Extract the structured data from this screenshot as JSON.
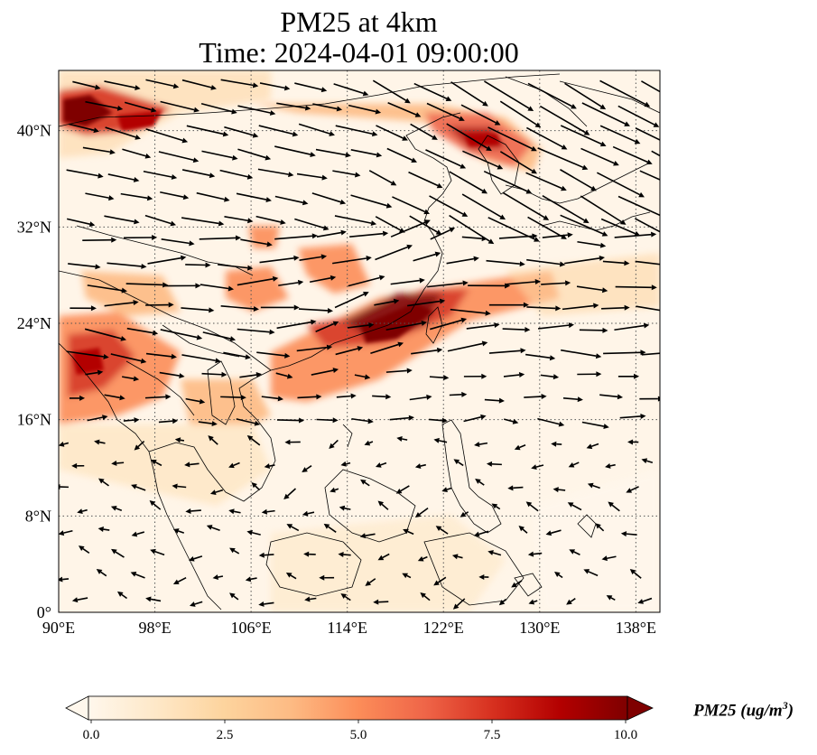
{
  "title": {
    "line1": "PM25 at 4km",
    "line2": "Time: 2024-04-01 09:00:00"
  },
  "axes": {
    "x_ticks": [
      "90°E",
      "98°E",
      "106°E",
      "114°E",
      "122°E",
      "130°E",
      "138°E"
    ],
    "y_ticks": [
      "0°",
      "8°N",
      "16°N",
      "24°N",
      "32°N",
      "40°N"
    ],
    "lon_range": [
      90,
      140
    ],
    "lat_range": [
      0,
      45
    ],
    "gridlines": "dotted"
  },
  "colorbar": {
    "label": "PM25 (ug/m",
    "label_sup": "3",
    "label_end": ")",
    "ticks": [
      "0.0",
      "2.5",
      "5.0",
      "7.5",
      "10.0"
    ],
    "range": [
      0,
      10
    ],
    "extend": "both",
    "colormap": "OrRd",
    "colors": [
      "#fff7ec",
      "#fee8c8",
      "#fdd49e",
      "#fdbb84",
      "#fc8d59",
      "#ef6548",
      "#d7301f",
      "#b30000",
      "#7f0000"
    ]
  },
  "map": {
    "background_color": "#fff5e8",
    "coastline_color": "#000000",
    "vector_color": "#000000"
  }
}
